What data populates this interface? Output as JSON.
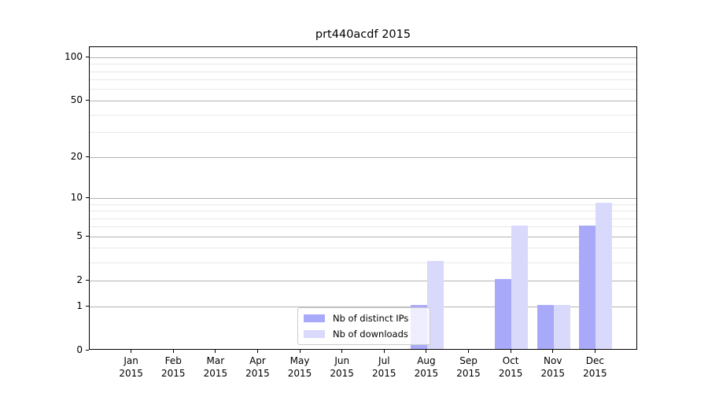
{
  "chart_data": {
    "type": "bar",
    "title": "prt440acdf 2015",
    "x_year": "2015",
    "categories": [
      "Jan",
      "Feb",
      "Mar",
      "Apr",
      "May",
      "Jun",
      "Jul",
      "Aug",
      "Sep",
      "Oct",
      "Nov",
      "Dec"
    ],
    "series": [
      {
        "name": "Nb of distinct IPs",
        "color": "#a9a9fa",
        "values": [
          0,
          0,
          0,
          0,
          0,
          0,
          0,
          1,
          0,
          2,
          1,
          6
        ]
      },
      {
        "name": "Nb of downloads",
        "color": "#d9d9fb",
        "values": [
          0,
          0,
          0,
          0,
          0,
          0,
          0,
          3,
          0,
          6,
          1,
          9
        ]
      }
    ],
    "y_ticks": [
      100,
      50,
      20,
      10,
      5,
      2,
      1,
      0
    ],
    "y_scale": "log10(value+1)",
    "ylim": [
      0,
      118
    ],
    "grid": {
      "major_color": "#b3b3b3",
      "minor_color": "#e9e9e9",
      "minor_values": [
        3,
        4,
        6,
        7,
        8,
        9,
        30,
        40,
        60,
        70,
        80,
        90
      ]
    },
    "legend": {
      "position": "inside plot, lower center-right",
      "entries": [
        "Nb of distinct IPs",
        "Nb of downloads"
      ]
    }
  }
}
